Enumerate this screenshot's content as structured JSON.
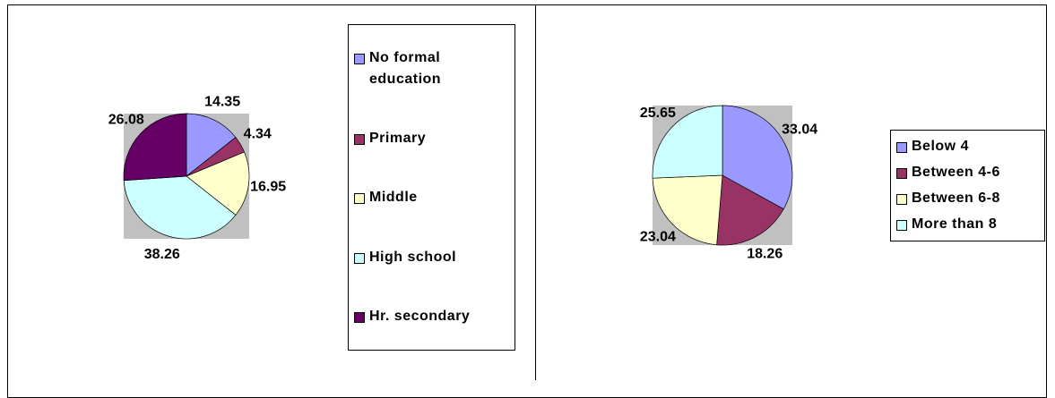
{
  "chart_data": [
    {
      "type": "pie",
      "categories": [
        "No formal education",
        "Primary",
        "Middle",
        "High school",
        "Hr. secondary"
      ],
      "values": [
        14.35,
        4.34,
        16.95,
        38.26,
        26.08
      ],
      "colors": [
        "#9999ff",
        "#993366",
        "#ffffcc",
        "#ccffff",
        "#660066"
      ],
      "legend": "right"
    },
    {
      "type": "pie",
      "categories": [
        "Below 4",
        "Between 4-6",
        "Between 6-8",
        "More than 8"
      ],
      "values": [
        33.04,
        18.26,
        23.04,
        25.65
      ],
      "colors": [
        "#9999ff",
        "#993366",
        "#ffffcc",
        "#ccffff"
      ],
      "legend": "right"
    }
  ]
}
